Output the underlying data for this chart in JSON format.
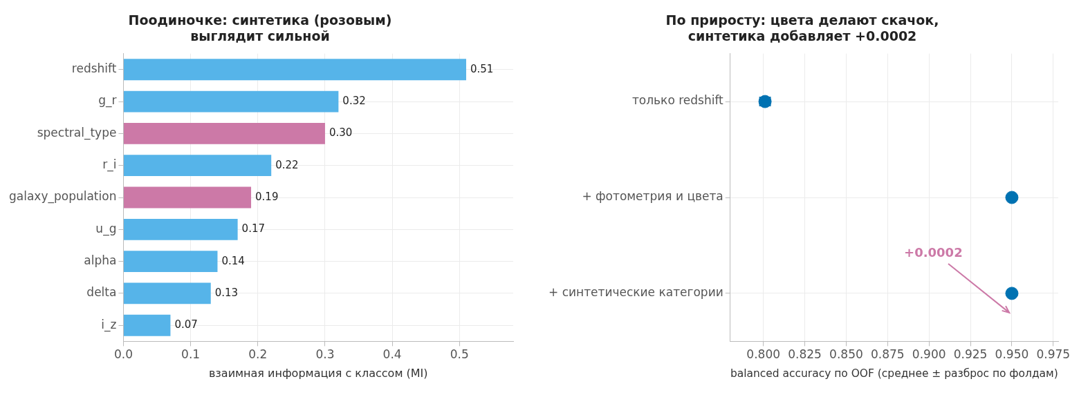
{
  "chart_data": [
    {
      "type": "bar",
      "orientation": "horizontal",
      "title": "Поодиночке: синтетика (розовым) выглядит сильной",
      "xlabel": "взаимная информация с классом (MI)",
      "categories": [
        "redshift",
        "g_r",
        "spectral_type",
        "r_i",
        "galaxy_population",
        "u_g",
        "alpha",
        "delta",
        "i_z"
      ],
      "values": [
        0.51,
        0.32,
        0.3,
        0.22,
        0.19,
        0.17,
        0.14,
        0.13,
        0.07
      ],
      "value_labels": [
        "0.51",
        "0.32",
        "0.30",
        "0.22",
        "0.19",
        "0.17",
        "0.14",
        "0.13",
        "0.07"
      ],
      "colors": [
        "#56b4e9",
        "#56b4e9",
        "#cc79a7",
        "#56b4e9",
        "#cc79a7",
        "#56b4e9",
        "#56b4e9",
        "#56b4e9",
        "#56b4e9"
      ],
      "xlim": [
        0,
        0.58
      ],
      "xticks": [
        {
          "value": 0,
          "label": "0.0"
        },
        {
          "value": 0.1,
          "label": "0.1"
        },
        {
          "value": 0.2,
          "label": "0.2"
        },
        {
          "value": 0.3,
          "label": "0.3"
        },
        {
          "value": 0.4,
          "label": "0.4"
        },
        {
          "value": 0.5,
          "label": "0.5"
        }
      ],
      "grid": true,
      "legend": false
    },
    {
      "type": "scatter",
      "orientation": "horizontal",
      "title": "По приросту: цвета делают скачок, синтетика добавляет +0.0002",
      "xlabel": "balanced accuracy по OOF (среднее ± разброс по фолдам)",
      "categories": [
        "только redshift",
        "+ фотометрия и цвета",
        "+ синтетические категории"
      ],
      "values": [
        0.801,
        0.95,
        0.95
      ],
      "errors": [
        0.003,
        null,
        null
      ],
      "color": "#0072b2",
      "marker": "circle",
      "xlim": [
        0.78,
        0.978
      ],
      "xticks": [
        {
          "value": 0.8,
          "label": "0.800"
        },
        {
          "value": 0.825,
          "label": "0.825"
        },
        {
          "value": 0.85,
          "label": "0.850"
        },
        {
          "value": 0.875,
          "label": "0.875"
        },
        {
          "value": 0.9,
          "label": "0.900"
        },
        {
          "value": 0.925,
          "label": "0.925"
        },
        {
          "value": 0.95,
          "label": "0.950"
        },
        {
          "value": 0.975,
          "label": "0.975"
        }
      ],
      "annotations": [
        "+0.0002"
      ],
      "grid": true,
      "legend": false
    }
  ]
}
